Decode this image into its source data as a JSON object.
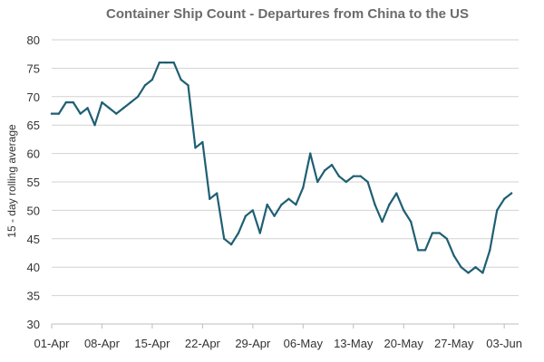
{
  "chart_data": {
    "type": "line",
    "title": "Container Ship Count - Departures from China to the US",
    "xlabel": "",
    "ylabel": "15 - day rolling average",
    "ylim": [
      30,
      80
    ],
    "yticks": [
      30,
      35,
      40,
      45,
      50,
      55,
      60,
      65,
      70,
      75,
      80
    ],
    "grid": "horizontal",
    "legend": "none",
    "line_color": "#1f5f73",
    "xtick_labels": [
      "01-Apr",
      "08-Apr",
      "15-Apr",
      "22-Apr",
      "29-Apr",
      "06-May",
      "13-May",
      "20-May",
      "27-May",
      "03-Jun"
    ],
    "series": [
      {
        "x": [
          "01-Apr",
          "02-Apr",
          "03-Apr",
          "04-Apr",
          "05-Apr",
          "06-Apr",
          "07-Apr",
          "08-Apr",
          "09-Apr",
          "10-Apr",
          "11-Apr",
          "12-Apr",
          "13-Apr",
          "14-Apr",
          "15-Apr",
          "16-Apr",
          "17-Apr",
          "18-Apr",
          "19-Apr",
          "20-Apr",
          "21-Apr",
          "22-Apr",
          "23-Apr",
          "24-Apr",
          "25-Apr",
          "26-Apr",
          "27-Apr",
          "28-Apr",
          "29-Apr",
          "30-Apr",
          "01-May",
          "02-May",
          "03-May",
          "04-May",
          "05-May",
          "06-May",
          "07-May",
          "08-May",
          "09-May",
          "10-May",
          "11-May",
          "12-May",
          "13-May",
          "14-May",
          "15-May",
          "16-May",
          "17-May",
          "18-May",
          "19-May",
          "20-May",
          "21-May",
          "22-May",
          "23-May",
          "24-May",
          "25-May",
          "26-May",
          "27-May",
          "28-May",
          "29-May",
          "30-May",
          "31-May",
          "01-Jun",
          "02-Jun",
          "03-Jun",
          "04-Jun",
          "05-Jun"
        ],
        "values": [
          67,
          67,
          69,
          69,
          67,
          68,
          65,
          69,
          68,
          67,
          68,
          69,
          70,
          72,
          73,
          76,
          76,
          76,
          73,
          72,
          61,
          62,
          52,
          53,
          45,
          44,
          46,
          49,
          50,
          46,
          51,
          49,
          51,
          52,
          51,
          54,
          60,
          55,
          57,
          58,
          56,
          55,
          56,
          56,
          55,
          51,
          48,
          51,
          53,
          50,
          48,
          43,
          43,
          46,
          46,
          45,
          42,
          40,
          39,
          40,
          39,
          43,
          50,
          52,
          53,
          null
        ]
      }
    ]
  }
}
